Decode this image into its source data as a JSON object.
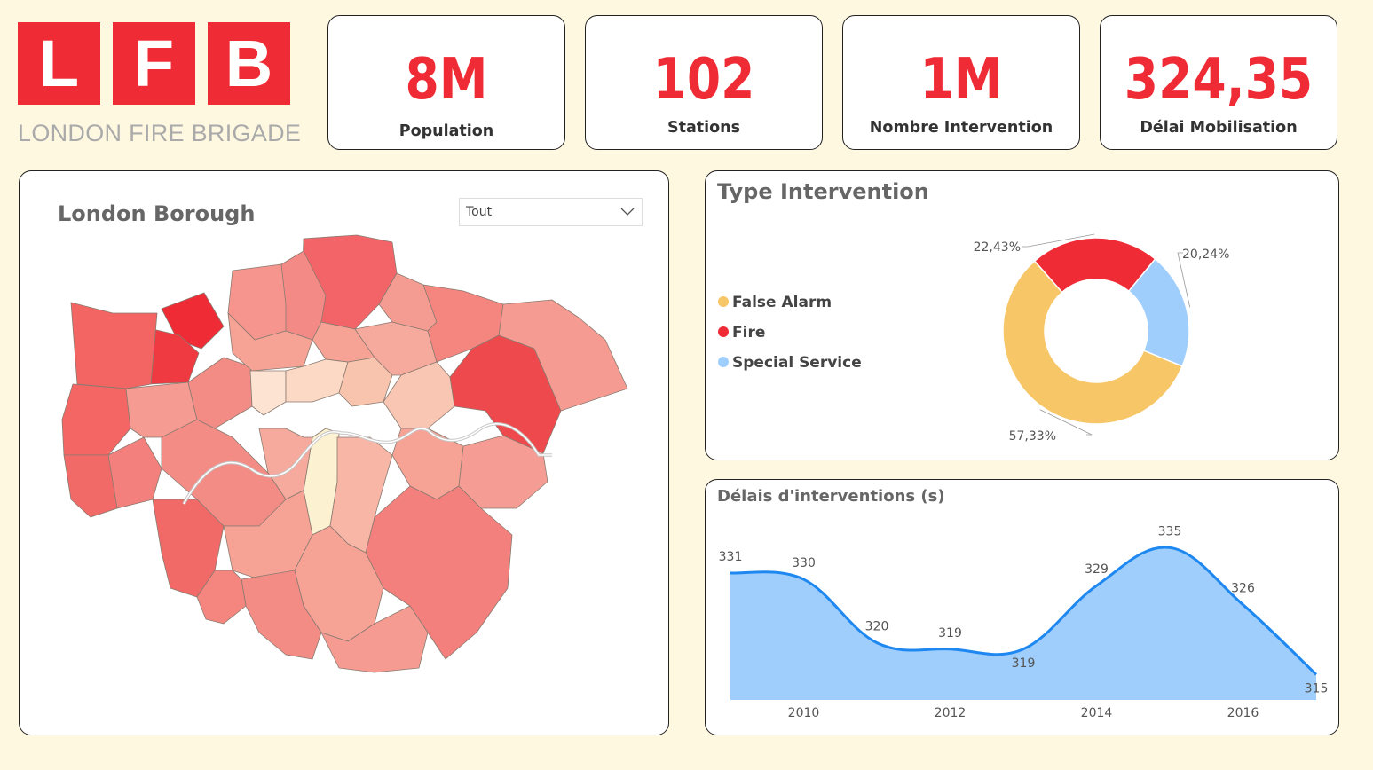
{
  "logo": {
    "letters": [
      "L",
      "F",
      "B"
    ],
    "subtitle": "LONDON FIRE BRIGADE"
  },
  "kpis": [
    {
      "value": "8M",
      "label": "Population"
    },
    {
      "value": "102",
      "label": "Stations"
    },
    {
      "value": "1M",
      "label": "Nombre Intervention"
    },
    {
      "value": "324,35",
      "label": "Délai Mobilisation"
    }
  ],
  "map_panel": {
    "title": "London Borough",
    "filter": {
      "value": "Tout"
    }
  },
  "type_panel": {
    "title": "Type Intervention"
  },
  "delay_panel": {
    "title": "Délais d'interventions (s)"
  },
  "colors": {
    "accent": "#ef2b36",
    "false_alarm": "#f6c667",
    "fire": "#ef2b36",
    "special_service": "#9fcefc",
    "line": "#1e88f0",
    "area": "#9fcefc"
  },
  "icons": {
    "dropdown": "chevron-down-icon"
  },
  "chart_data": [
    {
      "type": "pie",
      "title": "Type Intervention",
      "series": [
        {
          "name": "False Alarm",
          "value": 57.33,
          "label": "57,33%"
        },
        {
          "name": "Fire",
          "value": 22.43,
          "label": "22,43%"
        },
        {
          "name": "Special Service",
          "value": 20.24,
          "label": "20,24%"
        }
      ],
      "legend_position": "left"
    },
    {
      "type": "area",
      "title": "Délais d'interventions (s)",
      "x": [
        2009,
        2010,
        2011,
        2012,
        2013,
        2014,
        2015,
        2016,
        2017
      ],
      "values": [
        331,
        330,
        320,
        319,
        319,
        329,
        335,
        326,
        315
      ],
      "x_ticks": [
        "2010",
        "2012",
        "2014",
        "2016"
      ],
      "xlim": [
        2009,
        2017
      ],
      "ylim": [
        311,
        337
      ],
      "grid": false
    }
  ]
}
